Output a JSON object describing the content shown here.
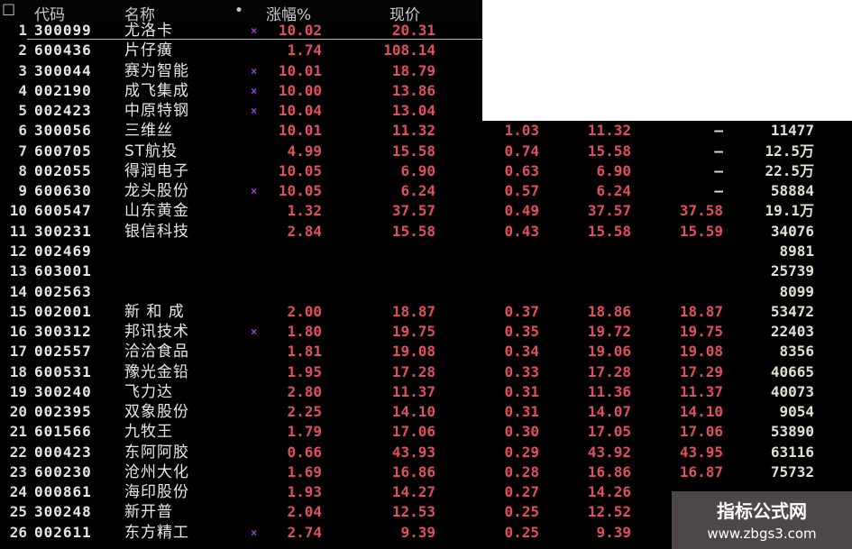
{
  "header": {
    "corner": "☐",
    "code": "代码",
    "name": "名称",
    "dot": "•",
    "pct": "涨幅%",
    "price": "现价"
  },
  "colors": {
    "up": "#e0505a",
    "text": "#e6e6e6",
    "marker": "#9a3cc8",
    "background": "#000000"
  },
  "rows": [
    {
      "rank": "1",
      "code": "300099",
      "name": "尤洛卡",
      "mark": "×",
      "pct": "10.02",
      "price": "20.31",
      "c7": "",
      "c8": "",
      "c9": "",
      "vol": ""
    },
    {
      "rank": "2",
      "code": "600436",
      "name": "片仔癀",
      "mark": "",
      "pct": "1.74",
      "price": "108.14",
      "c7": "",
      "c8": "",
      "c9": "",
      "vol": ""
    },
    {
      "rank": "3",
      "code": "300044",
      "name": "赛为智能",
      "mark": "×",
      "pct": "10.01",
      "price": "18.79",
      "c7": "",
      "c8": "",
      "c9": "",
      "vol": ""
    },
    {
      "rank": "4",
      "code": "002190",
      "name": "成飞集成",
      "mark": "×",
      "pct": "10.00",
      "price": "13.86",
      "c7": "",
      "c8": "",
      "c9": "",
      "vol": ""
    },
    {
      "rank": "5",
      "code": "002423",
      "name": "中原特钢",
      "mark": "×",
      "pct": "10.04",
      "price": "13.04",
      "c7": "",
      "c8": "",
      "c9": "",
      "vol": ""
    },
    {
      "rank": "6",
      "code": "300056",
      "name": "三维丝",
      "mark": "",
      "pct": "10.01",
      "price": "11.32",
      "c7": "1.03",
      "c8": "11.32",
      "c9": "—",
      "vol": "11477"
    },
    {
      "rank": "7",
      "code": "600705",
      "name": "ST航投",
      "mark": "",
      "pct": "4.99",
      "price": "15.58",
      "c7": "0.74",
      "c8": "15.58",
      "c9": "—",
      "vol": "12.5万"
    },
    {
      "rank": "8",
      "code": "002055",
      "name": "得润电子",
      "mark": "",
      "pct": "10.05",
      "price": "6.90",
      "c7": "0.63",
      "c8": "6.90",
      "c9": "—",
      "vol": "22.5万"
    },
    {
      "rank": "9",
      "code": "600630",
      "name": "龙头股份",
      "mark": "×",
      "pct": "10.05",
      "price": "6.24",
      "c7": "0.57",
      "c8": "6.24",
      "c9": "—",
      "vol": "58884"
    },
    {
      "rank": "10",
      "code": "600547",
      "name": "山东黄金",
      "mark": "",
      "pct": "1.32",
      "price": "37.57",
      "c7": "0.49",
      "c8": "37.57",
      "c9": "37.58",
      "vol": "19.1万"
    },
    {
      "rank": "11",
      "code": "300231",
      "name": "银信科技",
      "mark": "",
      "pct": "2.84",
      "price": "15.58",
      "c7": "0.43",
      "c8": "15.58",
      "c9": "15.59",
      "vol": "34076"
    },
    {
      "rank": "12",
      "code": "002469",
      "name": "",
      "mark": "",
      "pct": "",
      "price": "",
      "c7": "",
      "c8": "",
      "c9": "",
      "vol": "8981"
    },
    {
      "rank": "13",
      "code": "603001",
      "name": "",
      "mark": "",
      "pct": "",
      "price": "",
      "c7": "",
      "c8": "",
      "c9": "",
      "vol": "25739"
    },
    {
      "rank": "14",
      "code": "002563",
      "name": "",
      "mark": "",
      "pct": "",
      "price": "",
      "c7": "",
      "c8": "",
      "c9": "",
      "vol": "8099"
    },
    {
      "rank": "15",
      "code": "002001",
      "name": "新 和 成",
      "mark": "",
      "pct": "2.00",
      "price": "18.87",
      "c7": "0.37",
      "c8": "18.86",
      "c9": "18.87",
      "vol": "53472"
    },
    {
      "rank": "16",
      "code": "300312",
      "name": "邦讯技术",
      "mark": "×",
      "pct": "1.80",
      "price": "19.75",
      "c7": "0.35",
      "c8": "19.72",
      "c9": "19.75",
      "vol": "22403"
    },
    {
      "rank": "17",
      "code": "002557",
      "name": "洽洽食品",
      "mark": "",
      "pct": "1.81",
      "price": "19.08",
      "c7": "0.34",
      "c8": "19.06",
      "c9": "19.08",
      "vol": "8356"
    },
    {
      "rank": "18",
      "code": "600531",
      "name": "豫光金铅",
      "mark": "",
      "pct": "1.95",
      "price": "17.28",
      "c7": "0.33",
      "c8": "17.28",
      "c9": "17.29",
      "vol": "40665"
    },
    {
      "rank": "19",
      "code": "300240",
      "name": "飞力达",
      "mark": "",
      "pct": "2.80",
      "price": "11.37",
      "c7": "0.31",
      "c8": "11.36",
      "c9": "11.37",
      "vol": "40073"
    },
    {
      "rank": "20",
      "code": "002395",
      "name": "双象股份",
      "mark": "",
      "pct": "2.25",
      "price": "14.10",
      "c7": "0.31",
      "c8": "14.07",
      "c9": "14.10",
      "vol": "9054"
    },
    {
      "rank": "21",
      "code": "601566",
      "name": "九牧王",
      "mark": "",
      "pct": "1.79",
      "price": "17.06",
      "c7": "0.30",
      "c8": "17.05",
      "c9": "17.06",
      "vol": "53890"
    },
    {
      "rank": "22",
      "code": "000423",
      "name": "东阿阿胶",
      "mark": "",
      "pct": "0.66",
      "price": "43.93",
      "c7": "0.29",
      "c8": "43.92",
      "c9": "43.95",
      "vol": "63116"
    },
    {
      "rank": "23",
      "code": "600230",
      "name": "沧州大化",
      "mark": "",
      "pct": "1.69",
      "price": "16.86",
      "c7": "0.28",
      "c8": "16.86",
      "c9": "16.87",
      "vol": "75732"
    },
    {
      "rank": "24",
      "code": "000861",
      "name": "海印股份",
      "mark": "",
      "pct": "1.93",
      "price": "14.27",
      "c7": "0.27",
      "c8": "14.26",
      "c9": "",
      "vol": ""
    },
    {
      "rank": "25",
      "code": "300248",
      "name": "新开普",
      "mark": "",
      "pct": "2.04",
      "price": "12.53",
      "c7": "0.25",
      "c8": "12.52",
      "c9": "",
      "vol": ""
    },
    {
      "rank": "26",
      "code": "002611",
      "name": "东方精工",
      "mark": "×",
      "pct": "2.74",
      "price": "9.39",
      "c7": "0.25",
      "c8": "9.39",
      "c9": "",
      "vol": ""
    }
  ],
  "watermark": {
    "title": "指标公式网",
    "url": "www.zbgs3.com"
  }
}
